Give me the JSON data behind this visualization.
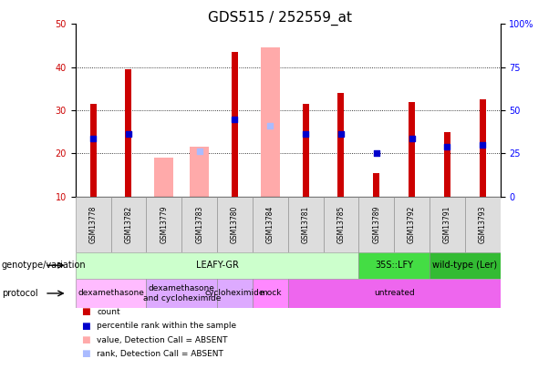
{
  "title": "GDS515 / 252559_at",
  "samples": [
    "GSM13778",
    "GSM13782",
    "GSM13779",
    "GSM13783",
    "GSM13780",
    "GSM13784",
    "GSM13781",
    "GSM13785",
    "GSM13789",
    "GSM13792",
    "GSM13791",
    "GSM13793"
  ],
  "red_bars": [
    31.5,
    39.5,
    null,
    null,
    43.5,
    null,
    31.5,
    34.0,
    15.5,
    32.0,
    25.0,
    32.5
  ],
  "pink_bars": [
    null,
    null,
    19.0,
    21.5,
    null,
    44.5,
    null,
    null,
    null,
    null,
    null,
    null
  ],
  "blue_dots": [
    23.5,
    24.5,
    null,
    null,
    28.0,
    null,
    24.5,
    24.5,
    20.0,
    23.5,
    21.5,
    22.0
  ],
  "light_blue_dots": [
    null,
    null,
    null,
    20.5,
    null,
    26.5,
    null,
    null,
    null,
    null,
    null,
    null
  ],
  "ylim": [
    10,
    50
  ],
  "yticks_left": [
    10,
    20,
    30,
    40,
    50
  ],
  "yticks_right_vals": [
    0,
    25,
    50,
    75,
    100
  ],
  "yticks_right_pos": [
    10,
    20,
    30,
    40,
    50
  ],
  "genotype_groups": [
    {
      "label": "LEAFY-GR",
      "start": 0,
      "end": 8,
      "color": "#ccffcc"
    },
    {
      "label": "35S::LFY",
      "start": 8,
      "end": 10,
      "color": "#44dd44"
    },
    {
      "label": "wild-type (Ler)",
      "start": 10,
      "end": 12,
      "color": "#33bb33"
    }
  ],
  "protocol_groups": [
    {
      "label": "dexamethasone",
      "start": 0,
      "end": 2,
      "color": "#ffbbff"
    },
    {
      "label": "dexamethasone\nand cycloheximide",
      "start": 2,
      "end": 4,
      "color": "#ddaaff"
    },
    {
      "label": "cycloheximide",
      "start": 4,
      "end": 5,
      "color": "#ddaaff"
    },
    {
      "label": "mock",
      "start": 5,
      "end": 6,
      "color": "#ff88ff"
    },
    {
      "label": "untreated",
      "start": 6,
      "end": 12,
      "color": "#ee66ee"
    }
  ],
  "red_color": "#cc0000",
  "pink_color": "#ffaaaa",
  "blue_color": "#0000cc",
  "light_blue_color": "#aabbff",
  "tick_fontsize": 7,
  "label_fontsize": 7,
  "legend_fontsize": 6.5,
  "xtick_fontsize": 5.5,
  "title_fontsize": 11
}
